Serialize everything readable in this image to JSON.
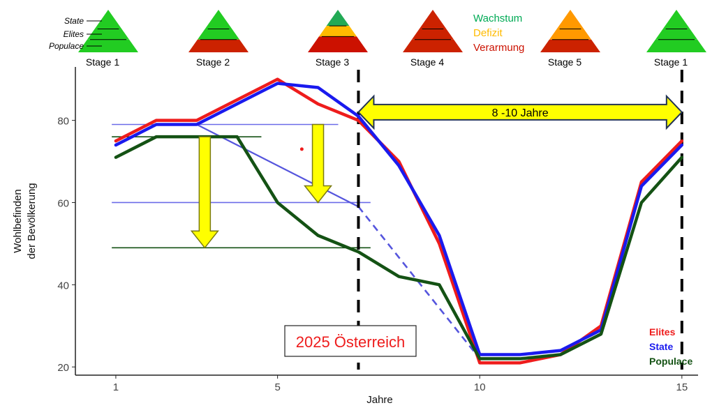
{
  "chart_data": {
    "type": "line",
    "xlabel": "Jahre",
    "ylabel": [
      "Wohlbefinden",
      "der Bevölkerung"
    ],
    "xlim": [
      0,
      15.4
    ],
    "ylim": [
      18,
      93
    ],
    "x_ticks": [
      1,
      5,
      10,
      15
    ],
    "y_ticks": [
      20,
      40,
      60,
      80
    ],
    "grid": false,
    "series": [
      {
        "name": "Elites",
        "color": "#ee1c1c",
        "x": [
          1,
          2,
          3,
          4,
          5,
          6,
          7,
          8,
          9,
          10,
          11,
          12,
          13,
          14,
          15
        ],
        "y": [
          75,
          80,
          80,
          85,
          90,
          84,
          80,
          70,
          50,
          21,
          21,
          23,
          30,
          65,
          75
        ]
      },
      {
        "name": "State",
        "color": "#1a1aee",
        "x": [
          1,
          2,
          3,
          4,
          5,
          6,
          7,
          8,
          9,
          10,
          11,
          12,
          13,
          14,
          15
        ],
        "y": [
          74,
          79,
          79,
          84,
          89,
          88,
          81,
          69,
          52,
          23,
          23,
          24,
          29,
          64,
          74
        ]
      },
      {
        "name": "Populace",
        "color": "#145214",
        "x": [
          1,
          2,
          3,
          4,
          5,
          6,
          7,
          8,
          9,
          10,
          11,
          12,
          13,
          14,
          15
        ],
        "y": [
          71,
          76,
          76,
          76,
          60,
          52,
          48,
          42,
          40,
          22,
          22,
          23,
          28,
          60,
          71
        ]
      }
    ],
    "legend": {
      "placement": "bottom-right",
      "entries": [
        {
          "label": "Elites",
          "color": "#ee1c1c"
        },
        {
          "label": "State",
          "color": "#1a1aee"
        },
        {
          "label": "Populace",
          "color": "#145214"
        }
      ]
    },
    "annotations": {
      "trend_line": {
        "color": "#5555dd",
        "x": [
          3,
          7
        ],
        "y": [
          79,
          59
        ],
        "dashed_to": {
          "x": 10,
          "y": 22
        }
      },
      "hlines": [
        {
          "y": 79,
          "x": [
            0.9,
            6.5
          ],
          "color": "#6b6be8"
        },
        {
          "y": 60,
          "x": [
            0.9,
            7.3
          ],
          "color": "#6b6be8"
        },
        {
          "y": 76,
          "x": [
            0.9,
            4.6
          ],
          "color": "#145214"
        },
        {
          "y": 49,
          "x": [
            0.9,
            7.3
          ],
          "color": "#145214"
        }
      ],
      "drop_arrows": [
        {
          "x": 3.2,
          "from": 76,
          "to": 49,
          "color": "#ffff00"
        },
        {
          "x": 6.0,
          "from": 79,
          "to": 60,
          "color": "#ffff00"
        }
      ],
      "vlines_dashed": [
        7,
        15
      ],
      "duration_arrow": {
        "from": 7,
        "to": 15,
        "y": 82,
        "label": "8 -10 Jahre",
        "color": "#ffff00"
      },
      "marker_dot": {
        "x": 5.6,
        "y": 73,
        "color": "#ee1c1c"
      },
      "country_box": {
        "label": "2025  Österreich",
        "color": "#ee1c1c"
      }
    },
    "stages": [
      {
        "label": "Stage 1",
        "x": 1.7,
        "layers": [
          "#22cc22",
          "#22cc22",
          "#22cc22"
        ],
        "lines": [
          0.45,
          0.7
        ]
      },
      {
        "label": "Stage 2",
        "x": 4.9,
        "layers": [
          "#22cc22",
          "#22cc22",
          "#cc2200"
        ],
        "lines": [
          0.45,
          0.7
        ]
      },
      {
        "label": "Stage 3",
        "x": 8.0,
        "layers": [
          "#22aa55",
          "#ffbb00",
          "#cc1100"
        ],
        "lines": [
          0.38,
          0.63
        ]
      },
      {
        "label": "Stage 4",
        "x": 11.0,
        "layers": [
          "#cc2200",
          "#cc2200",
          "#cc2200"
        ],
        "lines": [
          0.45,
          0.7
        ]
      },
      {
        "label": "Stage 5",
        "x": 14.2,
        "layers": [
          "#ff9900",
          "#ff9900",
          "#cc2200"
        ],
        "lines": [
          0.45,
          0.7
        ]
      },
      {
        "label": "Stage 1",
        "x": 17.5,
        "layers": [
          "#22cc22",
          "#22cc22",
          "#22cc22"
        ],
        "lines": [
          0.45,
          0.7
        ]
      }
    ],
    "pyramid_labels": [
      "State",
      "Elites",
      "Populace"
    ],
    "color_key": [
      {
        "label": "Wachstum",
        "color": "#00aa55"
      },
      {
        "label": "Defizit",
        "color": "#ffbb00"
      },
      {
        "label": "Verarmung",
        "color": "#cc1100"
      }
    ]
  }
}
